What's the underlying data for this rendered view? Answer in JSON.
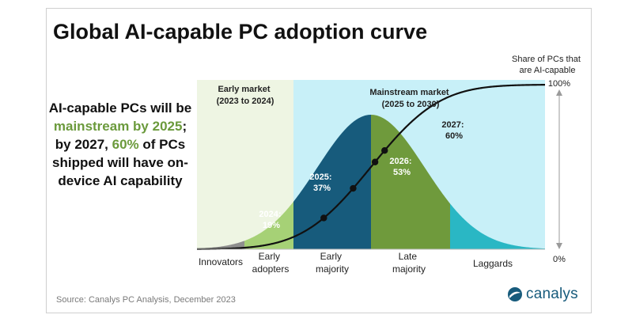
{
  "title": "Global AI-capable PC adoption curve",
  "side_text": {
    "part1": "AI-capable PCs will be ",
    "highlight1": "mainstream by 2025",
    "part2": "; by 2027, ",
    "highlight2": "60%",
    "part3": " of PCs shipped will have on-device AI capability"
  },
  "source": "Source: Canalys PC Analysis, December 2023",
  "logo_text": "canalys",
  "colors": {
    "early_market_bg": "#eef5e3",
    "mainstream_bg": "#c8f0f8",
    "innovators": "#8e8e8e",
    "early_adopters": "#a6d176",
    "early_majority": "#175b7c",
    "late_majority": "#6f9a3c",
    "laggards": "#2ab7c4",
    "highlight_text": "#6b9a3c"
  },
  "chart_data": {
    "type": "area",
    "description_free": true,
    "regions": [
      {
        "label": "Early market\n(2023 to 2024)",
        "lines": [
          "Early market",
          "(2023 to 2024)"
        ]
      },
      {
        "label": "Mainstream market\n(2025 to 2030)",
        "lines": [
          "Mainstream market",
          "(2025 to 2030)"
        ]
      }
    ],
    "segments": [
      {
        "name": "Innovators",
        "lines": [
          "Innovators"
        ]
      },
      {
        "name": "Early adopters",
        "lines": [
          "Early",
          "adopters"
        ]
      },
      {
        "name": "Early majority",
        "lines": [
          "Early",
          "majority"
        ]
      },
      {
        "name": "Late majority",
        "lines": [
          "Late",
          "majority"
        ]
      },
      {
        "name": "Laggards",
        "lines": [
          "Laggards"
        ]
      }
    ],
    "points": [
      {
        "year": "2024",
        "value": 19,
        "label_lines": [
          "2024:",
          "19%"
        ]
      },
      {
        "year": "2025",
        "value": 37,
        "label_lines": [
          "2025:",
          "37%"
        ]
      },
      {
        "year": "2026",
        "value": 53,
        "label_lines": [
          "2026:",
          "53%"
        ]
      },
      {
        "year": "2027",
        "value": 60,
        "label_lines": [
          "2027:",
          "60%"
        ]
      }
    ],
    "y_axis": {
      "label_lines": [
        "Share of PCs that",
        "are AI-capable"
      ],
      "top": "100%",
      "bottom": "0%",
      "range": [
        0,
        100
      ]
    }
  }
}
